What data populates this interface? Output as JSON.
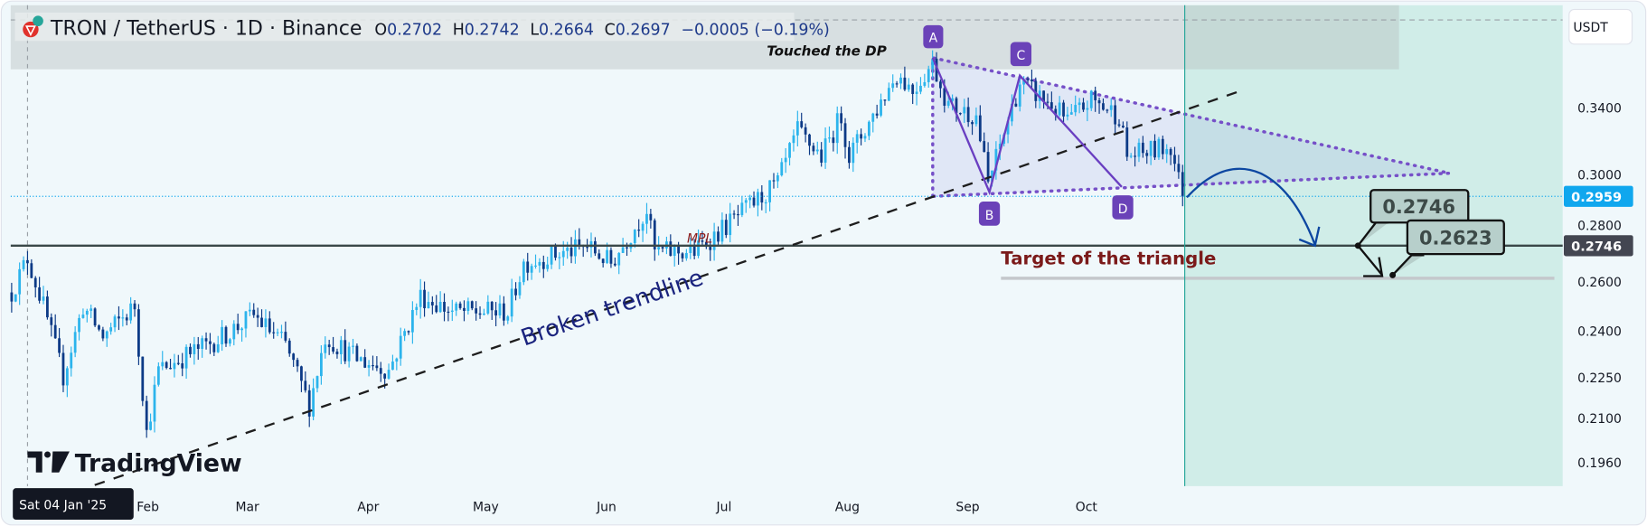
{
  "header": {
    "symbol": "TRON / TetherUS · 1D · Binance",
    "o_label": "O",
    "o_value": "0.2702",
    "h_label": "H",
    "h_value": "0.2742",
    "l_label": "L",
    "l_value": "0.2664",
    "c_label": "C",
    "c_value": "0.2697",
    "change": "−0.0005 (−0.19%)"
  },
  "currency": "USDT",
  "price_axis": [
    "0.3400",
    "0.3000",
    "0.2800",
    "0.2600",
    "0.2400",
    "0.2250",
    "0.2100",
    "0.1960"
  ],
  "price_tags": {
    "current": "0.2959",
    "level": "0.2746"
  },
  "time_axis": [
    "Feb",
    "Mar",
    "Apr",
    "May",
    "Jun",
    "Jul",
    "Aug",
    "Sep",
    "Oct"
  ],
  "crosshair_date": "Sat 04 Jan '25",
  "logo": "TradingView",
  "annotations": {
    "touched": "Touched the DP",
    "mpl": "MPL",
    "trendline": "Broken trendline",
    "target": "Target of the triangle",
    "callout_1": "0.2746",
    "callout_2": "0.2623",
    "points": [
      "A",
      "B",
      "C",
      "D"
    ]
  },
  "colors": {
    "up": "#2cb4ec",
    "down": "#0c3a86",
    "pattern": "#6a3fc1",
    "target": "#7b1a1a",
    "trend_text": "#1a237e",
    "current": "#10a7ee",
    "level": "#434651"
  },
  "chart_data": {
    "type": "candlestick",
    "title": "TRON / TetherUS · 1D · Binance",
    "x_unit": "days since 2025-01-04",
    "y_scale": "log",
    "ylim": [
      0.19,
      0.37
    ],
    "approx_close_keypoints": [
      [
        -4,
        0.255
      ],
      [
        0,
        0.269
      ],
      [
        4,
        0.2496
      ],
      [
        9,
        0.2238
      ],
      [
        14,
        0.2496
      ],
      [
        19,
        0.238
      ],
      [
        27,
        0.2496
      ],
      [
        30,
        0.205
      ],
      [
        33,
        0.226
      ],
      [
        49,
        0.238
      ],
      [
        57,
        0.246
      ],
      [
        65,
        0.235
      ],
      [
        71,
        0.214
      ],
      [
        75,
        0.238
      ],
      [
        83,
        0.23
      ],
      [
        91,
        0.226
      ],
      [
        99,
        0.2537
      ],
      [
        107,
        0.2474
      ],
      [
        121,
        0.2474
      ],
      [
        125,
        0.2668
      ],
      [
        141,
        0.2738
      ],
      [
        147,
        0.2668
      ],
      [
        156,
        0.29
      ],
      [
        158,
        0.2716
      ],
      [
        168,
        0.2716
      ],
      [
        178,
        0.2856
      ],
      [
        189,
        0.302
      ],
      [
        194,
        0.3274
      ],
      [
        200,
        0.315
      ],
      [
        205,
        0.3356
      ],
      [
        207,
        0.315
      ],
      [
        213,
        0.3356
      ],
      [
        219,
        0.358
      ],
      [
        223,
        0.349
      ],
      [
        228,
        0.364
      ],
      [
        232,
        0.341
      ],
      [
        239,
        0.3356
      ],
      [
        242,
        0.302
      ],
      [
        250,
        0.353
      ],
      [
        258,
        0.341
      ],
      [
        262,
        0.3326
      ],
      [
        268,
        0.344
      ],
      [
        275,
        0.3356
      ],
      [
        277,
        0.315
      ],
      [
        284,
        0.318
      ],
      [
        288,
        0.32
      ],
      [
        291,
        0.2959
      ]
    ],
    "last_candle": {
      "open": 0.2702,
      "high": 0.2742,
      "low": 0.2664,
      "close": 0.2697
    }
  }
}
